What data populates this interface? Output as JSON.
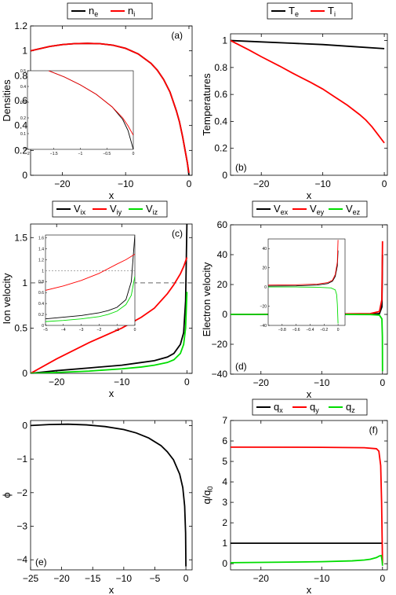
{
  "chart_data": [
    {
      "type": "line",
      "panel_label": "(a)",
      "xlabel": "x",
      "ylabel": "Densities",
      "xlim": [
        -25,
        0.5
      ],
      "ylim": [
        0,
        1.2
      ],
      "xticks": [
        -20,
        -10,
        0
      ],
      "yticks": [
        0,
        0.2,
        0.4,
        0.6,
        0.8,
        1,
        1.2
      ],
      "xtick_labels": [
        "−20",
        "−10",
        "0"
      ],
      "ytick_labels": [
        "0",
        "0.2",
        "0.4",
        "0.6",
        "0.8",
        "1",
        "1.2"
      ],
      "legend": {
        "position": "top-center",
        "entries": [
          "n",
          "n"
        ],
        "subscripts": [
          "e",
          "i"
        ],
        "colors": [
          "#000000",
          "#ff0000"
        ]
      },
      "series": [
        {
          "color": "#000000",
          "x": [
            -25,
            -22,
            -20,
            -18,
            -16,
            -14,
            -12,
            -10,
            -8,
            -6,
            -5,
            -4,
            -3,
            -2,
            -1.5,
            -1,
            -0.5,
            -0.25,
            0
          ],
          "y": [
            1.0,
            1.035,
            1.05,
            1.058,
            1.06,
            1.057,
            1.045,
            1.02,
            0.975,
            0.9,
            0.845,
            0.77,
            0.67,
            0.52,
            0.43,
            0.31,
            0.17,
            0.1,
            0
          ]
        },
        {
          "color": "#ff0000",
          "x": [
            -25,
            -22,
            -20,
            -18,
            -16,
            -14,
            -12,
            -10,
            -8,
            -6,
            -5,
            -4,
            -3,
            -2,
            -1.5,
            -1,
            -0.5,
            -0.25,
            0
          ],
          "y": [
            1.0,
            1.035,
            1.05,
            1.058,
            1.06,
            1.057,
            1.045,
            1.02,
            0.975,
            0.9,
            0.845,
            0.77,
            0.67,
            0.52,
            0.43,
            0.31,
            0.17,
            0.1,
            0.02
          ]
        }
      ],
      "inset": {
        "xlim": [
          -2,
          0
        ],
        "ylim": [
          0,
          0.5
        ],
        "xticks": [
          -2,
          -1.5,
          -1,
          -0.5,
          0
        ],
        "yticks": [
          0,
          0.1,
          0.2,
          0.3,
          0.4,
          0.5
        ],
        "xtick_labels": [
          "−2",
          "−1.5",
          "−1",
          "−0.5",
          "0"
        ],
        "ytick_labels": [
          "0",
          "0.1",
          "0.2",
          "0.3",
          "0.4",
          "0.5"
        ],
        "series": [
          {
            "color": "#000000",
            "x": [
              -1.6,
              -1.3,
              -1.0,
              -0.7,
              -0.4,
              -0.2,
              -0.1,
              0
            ],
            "y": [
              0.5,
              0.46,
              0.41,
              0.35,
              0.27,
              0.19,
              0.12,
              0
            ]
          },
          {
            "color": "#ff0000",
            "x": [
              -1.6,
              -1.3,
              -1.0,
              -0.7,
              -0.4,
              -0.2,
              -0.1,
              0
            ],
            "y": [
              0.5,
              0.46,
              0.41,
              0.35,
              0.27,
              0.2,
              0.15,
              0.09
            ]
          }
        ]
      }
    },
    {
      "type": "line",
      "panel_label": "(b)",
      "xlabel": "x",
      "ylabel": "Temperatures",
      "xlim": [
        -25,
        0.5
      ],
      "ylim": [
        0,
        1.05
      ],
      "xticks": [
        -20,
        -10,
        0
      ],
      "yticks": [
        0,
        0.2,
        0.4,
        0.6,
        0.8,
        1
      ],
      "xtick_labels": [
        "−20",
        "−10",
        "0"
      ],
      "ytick_labels": [
        "0",
        "0.2",
        "0.4",
        "0.6",
        "0.8",
        "1"
      ],
      "legend": {
        "position": "top-center",
        "entries": [
          "T",
          "T"
        ],
        "subscripts": [
          "e",
          "i"
        ],
        "colors": [
          "#000000",
          "#ff0000"
        ]
      },
      "series": [
        {
          "color": "#000000",
          "x": [
            -25,
            -20,
            -15,
            -10,
            -5,
            0
          ],
          "y": [
            1.0,
            0.99,
            0.98,
            0.97,
            0.955,
            0.94
          ]
        },
        {
          "color": "#ff0000",
          "x": [
            -25,
            -22,
            -20,
            -17,
            -15,
            -12,
            -10,
            -8,
            -6,
            -4,
            -3,
            -2,
            -1,
            0
          ],
          "y": [
            1.0,
            0.93,
            0.88,
            0.81,
            0.76,
            0.69,
            0.64,
            0.58,
            0.52,
            0.45,
            0.41,
            0.36,
            0.3,
            0.24
          ]
        }
      ]
    },
    {
      "type": "line",
      "panel_label": "(c)",
      "xlabel": "x",
      "ylabel": "Ion velocity",
      "xlim": [
        -24,
        0.8
      ],
      "ylim": [
        0,
        1.65
      ],
      "xticks": [
        -20,
        -10,
        0
      ],
      "yticks": [
        0,
        0.5,
        1,
        1.5
      ],
      "xtick_labels": [
        "−20",
        "−10",
        "0"
      ],
      "ytick_labels": [
        "0",
        "0.5",
        "1",
        "1.5"
      ],
      "reference_line": {
        "y": 1,
        "style": "dashed"
      },
      "legend": {
        "position": "top-center",
        "entries": [
          "V",
          "V",
          "V"
        ],
        "subscripts": [
          "ix",
          "iy",
          "iz"
        ],
        "colors": [
          "#000000",
          "#ff0000",
          "#00dd00"
        ]
      },
      "series": [
        {
          "color": "#000000",
          "x": [
            -24,
            -20,
            -15,
            -10,
            -7,
            -5,
            -3,
            -2,
            -1,
            -0.5,
            -0.2,
            0
          ],
          "y": [
            0.0,
            0.03,
            0.06,
            0.09,
            0.12,
            0.14,
            0.18,
            0.22,
            0.32,
            0.45,
            0.8,
            1.65
          ]
        },
        {
          "color": "#ff0000",
          "x": [
            -24,
            -20,
            -15,
            -10,
            -7,
            -5,
            -3,
            -2,
            -1,
            -0.5,
            0
          ],
          "y": [
            0.0,
            0.16,
            0.34,
            0.5,
            0.62,
            0.72,
            0.88,
            0.98,
            1.1,
            1.18,
            1.28
          ]
        },
        {
          "color": "#00dd00",
          "x": [
            -24,
            -20,
            -15,
            -10,
            -7,
            -5,
            -3,
            -2,
            -1,
            -0.5,
            -0.2,
            0
          ],
          "y": [
            0.0,
            0.01,
            0.025,
            0.05,
            0.07,
            0.09,
            0.12,
            0.15,
            0.22,
            0.32,
            0.5,
            0.9
          ]
        }
      ],
      "inset": {
        "xlim": [
          -5,
          0
        ],
        "ylim": [
          0,
          1.65
        ],
        "xticks": [
          -5,
          -4,
          -3,
          -2,
          -1,
          0
        ],
        "yticks": [
          0,
          0.2,
          0.4,
          0.6,
          0.8,
          1,
          1.2,
          1.4,
          1.6
        ],
        "xtick_labels": [
          "−5",
          "−4",
          "−3",
          "−2",
          "−1",
          "0"
        ],
        "ytick_labels": [
          "0",
          "0.2",
          "0.4",
          "0.6",
          "0.8",
          "1",
          "1.2",
          "1.4",
          "1.6"
        ],
        "reference_line": {
          "y": 1,
          "style": "dotted"
        },
        "series": [
          {
            "color": "#000000",
            "x": [
              -5,
              -4,
              -3,
              -2,
              -1.5,
              -1,
              -0.5,
              -0.2,
              0
            ],
            "y": [
              0.12,
              0.15,
              0.18,
              0.23,
              0.27,
              0.33,
              0.47,
              0.8,
              1.65
            ]
          },
          {
            "color": "#ff0000",
            "x": [
              -5,
              -4,
              -3,
              -2,
              -1,
              -0.5,
              0
            ],
            "y": [
              0.64,
              0.72,
              0.82,
              0.95,
              1.12,
              1.2,
              1.3
            ]
          },
          {
            "color": "#00dd00",
            "x": [
              -5,
              -4,
              -3,
              -2,
              -1.5,
              -1,
              -0.5,
              -0.2,
              0
            ],
            "y": [
              0.07,
              0.09,
              0.12,
              0.16,
              0.2,
              0.26,
              0.38,
              0.55,
              0.9
            ]
          }
        ]
      }
    },
    {
      "type": "line",
      "panel_label": "(d)",
      "xlabel": "x",
      "ylabel": "Electron velocity",
      "xlim": [
        -25,
        0.8
      ],
      "ylim": [
        -40,
        60
      ],
      "xticks": [
        -20,
        -10,
        0
      ],
      "yticks": [
        -40,
        -20,
        0,
        20,
        40,
        60
      ],
      "xtick_labels": [
        "−20",
        "−10",
        "0"
      ],
      "ytick_labels": [
        "−40",
        "−20",
        "0",
        "20",
        "40",
        "60"
      ],
      "legend": {
        "position": "top-center",
        "entries": [
          "V",
          "V",
          "V"
        ],
        "subscripts": [
          "ex",
          "ey",
          "ez"
        ],
        "colors": [
          "#000000",
          "#ff0000",
          "#00dd00"
        ]
      },
      "series": [
        {
          "color": "#000000",
          "x": [
            -25,
            -10,
            -2,
            -0.5,
            -0.1,
            0
          ],
          "y": [
            0,
            0,
            0.1,
            0.5,
            5,
            40
          ]
        },
        {
          "color": "#ff0000",
          "x": [
            -25,
            -10,
            -2,
            -0.5,
            -0.1,
            0
          ],
          "y": [
            0,
            0.2,
            0.5,
            2,
            10,
            49
          ]
        },
        {
          "color": "#00dd00",
          "x": [
            -25,
            -10,
            -2,
            -0.5,
            -0.1,
            -0.02,
            0
          ],
          "y": [
            0,
            0,
            -0.1,
            -0.5,
            -3,
            -15,
            -38
          ]
        }
      ],
      "inset": {
        "xlim": [
          -1,
          0.1
        ],
        "ylim": [
          -40,
          50
        ],
        "xticks": [
          -0.8,
          -0.6,
          -0.4,
          -0.2,
          0
        ],
        "yticks": [
          -40,
          -20,
          0,
          20,
          40
        ],
        "xtick_labels": [
          "−0.8",
          "−0.6",
          "−0.4",
          "−0.2",
          "0"
        ],
        "ytick_labels": [
          "−40",
          "−20",
          "0",
          "20",
          "40"
        ],
        "series": [
          {
            "color": "#000000",
            "x": [
              -1,
              -0.6,
              -0.3,
              -0.15,
              -0.08,
              -0.04,
              -0.01,
              0
            ],
            "y": [
              1,
              1.2,
              2,
              3.5,
              6,
              11,
              22,
              38
            ]
          },
          {
            "color": "#ff0000",
            "x": [
              -1,
              -0.6,
              -0.3,
              -0.15,
              -0.08,
              -0.04,
              -0.01,
              0
            ],
            "y": [
              2,
              2.3,
              3,
              4.5,
              7,
              13,
              26,
              49
            ]
          },
          {
            "color": "#00dd00",
            "x": [
              -1,
              -0.6,
              -0.3,
              -0.1,
              -0.04,
              -0.02,
              -0.01,
              0
            ],
            "y": [
              0,
              0,
              -0.3,
              -1,
              -3,
              -8,
              -18,
              -38
            ]
          }
        ]
      }
    },
    {
      "type": "line",
      "panel_label": "(e)",
      "xlabel": "x",
      "ylabel": "ϕ",
      "xlim": [
        -25,
        1
      ],
      "ylim": [
        -4.3,
        0.15
      ],
      "xticks": [
        -25,
        -20,
        -15,
        -10,
        -5,
        0
      ],
      "yticks": [
        -4,
        -3,
        -2,
        -1,
        0
      ],
      "xtick_labels": [
        "−25",
        "−20",
        "−15",
        "−10",
        "−5",
        "0"
      ],
      "ytick_labels": [
        "−4",
        "−3",
        "−2",
        "−1",
        "0"
      ],
      "series": [
        {
          "color": "#000000",
          "x": [
            -25,
            -22,
            -19,
            -16,
            -13,
            -10,
            -8,
            -6,
            -4,
            -3,
            -2,
            -1,
            -0.5,
            -0.2,
            -0.05,
            0
          ],
          "y": [
            0.0,
            0.03,
            0.04,
            0.02,
            -0.03,
            -0.12,
            -0.22,
            -0.37,
            -0.6,
            -0.78,
            -1.02,
            -1.45,
            -1.85,
            -2.4,
            -3.2,
            -4.2
          ]
        }
      ]
    },
    {
      "type": "line",
      "panel_label": "(f)",
      "xlabel": "x",
      "ylabel": "q/q",
      "ylabel_subscript": "0",
      "xlim": [
        -25,
        0.8
      ],
      "ylim": [
        -0.3,
        7
      ],
      "xticks": [
        -20,
        -10,
        0
      ],
      "yticks": [
        0,
        1,
        2,
        3,
        4,
        5,
        6,
        7
      ],
      "xtick_labels": [
        "−20",
        "−10",
        "0"
      ],
      "ytick_labels": [
        "0",
        "1",
        "2",
        "3",
        "4",
        "5",
        "6",
        "7"
      ],
      "legend": {
        "position": "top-center",
        "entries": [
          "q",
          "q",
          "q"
        ],
        "subscripts": [
          "x",
          "y",
          "z"
        ],
        "colors": [
          "#000000",
          "#ff0000",
          "#00dd00"
        ]
      },
      "series": [
        {
          "color": "#000000",
          "x": [
            -25,
            -10,
            0
          ],
          "y": [
            1,
            1,
            1
          ]
        },
        {
          "color": "#ff0000",
          "x": [
            -25,
            -10,
            -3,
            -1,
            -0.6,
            -0.3,
            -0.15,
            -0.05,
            0
          ],
          "y": [
            5.7,
            5.69,
            5.67,
            5.62,
            5.5,
            4.8,
            3.0,
            1.0,
            0.0
          ]
        },
        {
          "color": "#00dd00",
          "x": [
            -25,
            -15,
            -10,
            -5,
            -3,
            -2,
            -1,
            -0.5,
            -0.2,
            -0.05,
            0
          ],
          "y": [
            0.05,
            0.08,
            0.1,
            0.14,
            0.18,
            0.22,
            0.3,
            0.38,
            0.4,
            0.1,
            -0.1
          ]
        }
      ]
    }
  ]
}
